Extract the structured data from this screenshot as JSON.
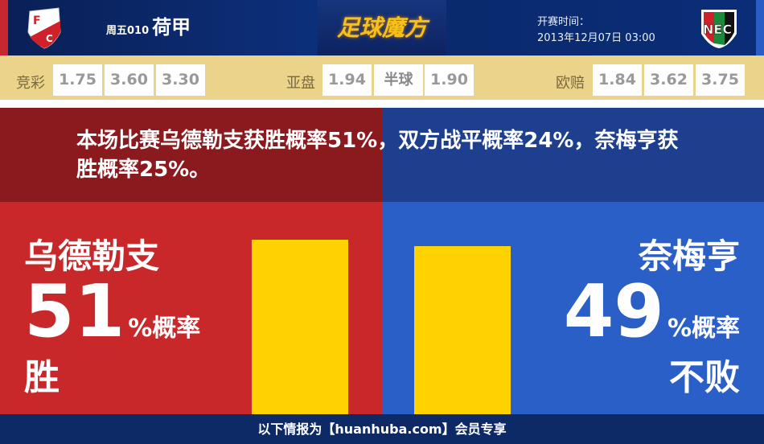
{
  "header": {
    "home_logo": "FC Utrecht",
    "away_logo": "NEC Nijmegen",
    "weekday_code": "周五010",
    "league": "荷甲",
    "brand": "足球魔方",
    "kickoff_label": "开赛时间：",
    "kickoff_time": "2013年12月07日 03:00"
  },
  "odds": {
    "jingcai": {
      "label": "竞彩",
      "values": [
        "1.75",
        "3.60",
        "3.30"
      ]
    },
    "yapan": {
      "label": "亚盘",
      "home": "1.94",
      "handicap": "半球",
      "away": "1.90"
    },
    "oupei": {
      "label": "欧赔",
      "values": [
        "1.84",
        "3.62",
        "3.75"
      ]
    }
  },
  "summary": "本场比赛乌德勒支获胜概率51%，双方战平概率24%，奈梅亨获胜概率25%。",
  "home": {
    "name": "乌德勒支",
    "percent": "51",
    "unit": "%概率",
    "result": "胜",
    "bar_value": 51,
    "color": "#c8282a"
  },
  "away": {
    "name": "奈梅亨",
    "percent": "49",
    "unit": "%概率",
    "result": "不败",
    "bar_value": 49,
    "color": "#2b5fc8"
  },
  "footer": "以下情报为【huanhuba.com】会员专享"
}
